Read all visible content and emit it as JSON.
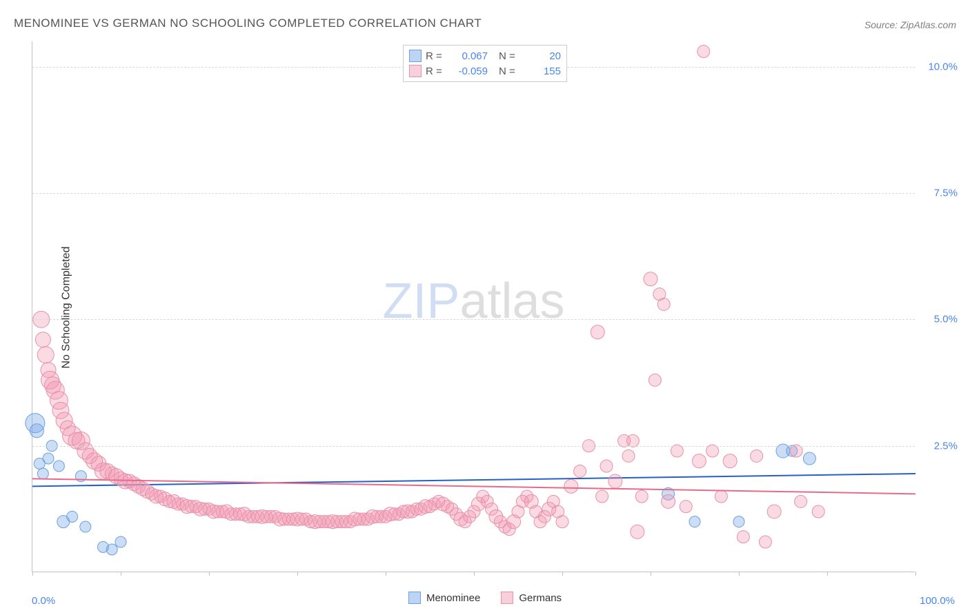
{
  "title": "MENOMINEE VS GERMAN NO SCHOOLING COMPLETED CORRELATION CHART",
  "source": "Source: ZipAtlas.com",
  "y_axis_label": "No Schooling Completed",
  "watermark": {
    "part1": "ZIP",
    "part2": "atlas"
  },
  "chart": {
    "type": "scatter",
    "xlim": [
      0,
      100
    ],
    "ylim": [
      0,
      10.5
    ],
    "x_tick_positions_pct": [
      0,
      10,
      20,
      30,
      40,
      50,
      60,
      70,
      80,
      90,
      100
    ],
    "y_gridlines": [
      2.5,
      5.0,
      7.5,
      10.0
    ],
    "y_tick_labels": [
      "2.5%",
      "5.0%",
      "7.5%",
      "10.0%"
    ],
    "x_tick_left": "0.0%",
    "x_tick_right": "100.0%",
    "background_color": "#ffffff",
    "grid_color": "#d8d8d8",
    "axis_color": "#c0c0c0",
    "series": [
      {
        "name": "Menominee",
        "fill": "rgba(110,160,230,0.35)",
        "stroke": "#6aa0e0",
        "marker_radius": 9,
        "trend": {
          "color": "#2560c4",
          "width": 2,
          "y_at_x0": 1.7,
          "y_at_x100": 1.95
        },
        "stats": {
          "R": "0.067",
          "N": "20"
        },
        "points": [
          {
            "x": 0.3,
            "y": 2.95,
            "r": 14
          },
          {
            "x": 0.5,
            "y": 2.8,
            "r": 10
          },
          {
            "x": 0.8,
            "y": 2.15,
            "r": 8
          },
          {
            "x": 1.2,
            "y": 1.95,
            "r": 8
          },
          {
            "x": 1.8,
            "y": 2.25,
            "r": 8
          },
          {
            "x": 3.0,
            "y": 2.1,
            "r": 8
          },
          {
            "x": 4.5,
            "y": 1.1,
            "r": 8
          },
          {
            "x": 6.0,
            "y": 0.9,
            "r": 8
          },
          {
            "x": 3.5,
            "y": 1.0,
            "r": 9
          },
          {
            "x": 8.0,
            "y": 0.5,
            "r": 8
          },
          {
            "x": 9.0,
            "y": 0.45,
            "r": 8
          },
          {
            "x": 10.0,
            "y": 0.6,
            "r": 8
          },
          {
            "x": 5.5,
            "y": 1.9,
            "r": 8
          },
          {
            "x": 72.0,
            "y": 1.55,
            "r": 9
          },
          {
            "x": 75.0,
            "y": 1.0,
            "r": 8
          },
          {
            "x": 80.0,
            "y": 1.0,
            "r": 8
          },
          {
            "x": 85.0,
            "y": 2.4,
            "r": 10
          },
          {
            "x": 88.0,
            "y": 2.25,
            "r": 9
          },
          {
            "x": 86.0,
            "y": 2.4,
            "r": 8
          },
          {
            "x": 2.2,
            "y": 2.5,
            "r": 8
          }
        ]
      },
      {
        "name": "Germans",
        "fill": "rgba(240,150,175,0.35)",
        "stroke": "#e890aa",
        "marker_radius": 9,
        "trend": {
          "color": "#e86a8a",
          "width": 2,
          "y_at_x0": 1.85,
          "y_at_x100": 1.55
        },
        "stats": {
          "R": "-0.059",
          "N": "155"
        },
        "points": [
          {
            "x": 1.0,
            "y": 5.0,
            "r": 12
          },
          {
            "x": 1.2,
            "y": 4.6,
            "r": 11
          },
          {
            "x": 1.5,
            "y": 4.3,
            "r": 12
          },
          {
            "x": 1.8,
            "y": 4.0,
            "r": 11
          },
          {
            "x": 2.0,
            "y": 3.8,
            "r": 13
          },
          {
            "x": 2.3,
            "y": 3.7,
            "r": 12
          },
          {
            "x": 2.6,
            "y": 3.6,
            "r": 13
          },
          {
            "x": 3.0,
            "y": 3.4,
            "r": 13
          },
          {
            "x": 3.2,
            "y": 3.2,
            "r": 12
          },
          {
            "x": 3.6,
            "y": 3.0,
            "r": 12
          },
          {
            "x": 4.0,
            "y": 2.85,
            "r": 11
          },
          {
            "x": 4.5,
            "y": 2.7,
            "r": 14
          },
          {
            "x": 5.0,
            "y": 2.6,
            "r": 12
          },
          {
            "x": 5.5,
            "y": 2.6,
            "r": 13
          },
          {
            "x": 6.0,
            "y": 2.4,
            "r": 12
          },
          {
            "x": 6.5,
            "y": 2.3,
            "r": 11
          },
          {
            "x": 7.0,
            "y": 2.2,
            "r": 12
          },
          {
            "x": 7.5,
            "y": 2.15,
            "r": 11
          },
          {
            "x": 8.0,
            "y": 2.0,
            "r": 12
          },
          {
            "x": 8.5,
            "y": 2.0,
            "r": 11
          },
          {
            "x": 9.0,
            "y": 1.95,
            "r": 10
          },
          {
            "x": 9.5,
            "y": 1.9,
            "r": 11
          },
          {
            "x": 10.0,
            "y": 1.85,
            "r": 10
          },
          {
            "x": 10.5,
            "y": 1.8,
            "r": 11
          },
          {
            "x": 11.0,
            "y": 1.8,
            "r": 10
          },
          {
            "x": 11.5,
            "y": 1.75,
            "r": 10
          },
          {
            "x": 12.0,
            "y": 1.7,
            "r": 10
          },
          {
            "x": 12.5,
            "y": 1.65,
            "r": 10
          },
          {
            "x": 13.0,
            "y": 1.6,
            "r": 10
          },
          {
            "x": 13.5,
            "y": 1.55,
            "r": 9
          },
          {
            "x": 14.0,
            "y": 1.5,
            "r": 10
          },
          {
            "x": 14.5,
            "y": 1.5,
            "r": 9
          },
          {
            "x": 15.0,
            "y": 1.45,
            "r": 10
          },
          {
            "x": 15.5,
            "y": 1.4,
            "r": 9
          },
          {
            "x": 16.0,
            "y": 1.4,
            "r": 10
          },
          {
            "x": 16.5,
            "y": 1.35,
            "r": 9
          },
          {
            "x": 17.0,
            "y": 1.35,
            "r": 9
          },
          {
            "x": 17.5,
            "y": 1.3,
            "r": 10
          },
          {
            "x": 18.0,
            "y": 1.3,
            "r": 9
          },
          {
            "x": 18.5,
            "y": 1.3,
            "r": 9
          },
          {
            "x": 19.0,
            "y": 1.25,
            "r": 10
          },
          {
            "x": 19.5,
            "y": 1.25,
            "r": 9
          },
          {
            "x": 20.0,
            "y": 1.25,
            "r": 9
          },
          {
            "x": 20.5,
            "y": 1.2,
            "r": 10
          },
          {
            "x": 21.0,
            "y": 1.2,
            "r": 9
          },
          {
            "x": 21.5,
            "y": 1.2,
            "r": 9
          },
          {
            "x": 22.0,
            "y": 1.2,
            "r": 10
          },
          {
            "x": 22.5,
            "y": 1.15,
            "r": 9
          },
          {
            "x": 23.0,
            "y": 1.15,
            "r": 9
          },
          {
            "x": 23.5,
            "y": 1.15,
            "r": 9
          },
          {
            "x": 24.0,
            "y": 1.15,
            "r": 10
          },
          {
            "x": 24.5,
            "y": 1.1,
            "r": 9
          },
          {
            "x": 25.0,
            "y": 1.1,
            "r": 9
          },
          {
            "x": 25.5,
            "y": 1.1,
            "r": 9
          },
          {
            "x": 26.0,
            "y": 1.1,
            "r": 10
          },
          {
            "x": 26.5,
            "y": 1.1,
            "r": 9
          },
          {
            "x": 27.0,
            "y": 1.1,
            "r": 9
          },
          {
            "x": 27.5,
            "y": 1.1,
            "r": 9
          },
          {
            "x": 28.0,
            "y": 1.05,
            "r": 10
          },
          {
            "x": 28.5,
            "y": 1.05,
            "r": 9
          },
          {
            "x": 29.0,
            "y": 1.05,
            "r": 9
          },
          {
            "x": 29.5,
            "y": 1.05,
            "r": 9
          },
          {
            "x": 30.0,
            "y": 1.05,
            "r": 10
          },
          {
            "x": 30.5,
            "y": 1.05,
            "r": 9
          },
          {
            "x": 31.0,
            "y": 1.05,
            "r": 9
          },
          {
            "x": 31.5,
            "y": 1.0,
            "r": 9
          },
          {
            "x": 32.0,
            "y": 1.0,
            "r": 10
          },
          {
            "x": 32.5,
            "y": 1.0,
            "r": 9
          },
          {
            "x": 33.0,
            "y": 1.0,
            "r": 9
          },
          {
            "x": 33.5,
            "y": 1.0,
            "r": 9
          },
          {
            "x": 34.0,
            "y": 1.0,
            "r": 10
          },
          {
            "x": 34.5,
            "y": 1.0,
            "r": 9
          },
          {
            "x": 35.0,
            "y": 1.0,
            "r": 9
          },
          {
            "x": 35.5,
            "y": 1.0,
            "r": 9
          },
          {
            "x": 36.0,
            "y": 1.0,
            "r": 9
          },
          {
            "x": 36.5,
            "y": 1.05,
            "r": 10
          },
          {
            "x": 37.0,
            "y": 1.05,
            "r": 9
          },
          {
            "x": 37.5,
            "y": 1.05,
            "r": 9
          },
          {
            "x": 38.0,
            "y": 1.05,
            "r": 9
          },
          {
            "x": 38.5,
            "y": 1.1,
            "r": 10
          },
          {
            "x": 39.0,
            "y": 1.1,
            "r": 9
          },
          {
            "x": 39.5,
            "y": 1.1,
            "r": 9
          },
          {
            "x": 40.0,
            "y": 1.1,
            "r": 9
          },
          {
            "x": 40.5,
            "y": 1.15,
            "r": 10
          },
          {
            "x": 41.0,
            "y": 1.15,
            "r": 9
          },
          {
            "x": 41.5,
            "y": 1.15,
            "r": 9
          },
          {
            "x": 42.0,
            "y": 1.2,
            "r": 9
          },
          {
            "x": 42.5,
            "y": 1.2,
            "r": 10
          },
          {
            "x": 43.0,
            "y": 1.2,
            "r": 9
          },
          {
            "x": 43.5,
            "y": 1.25,
            "r": 9
          },
          {
            "x": 44.0,
            "y": 1.25,
            "r": 9
          },
          {
            "x": 44.5,
            "y": 1.3,
            "r": 10
          },
          {
            "x": 45.0,
            "y": 1.3,
            "r": 9
          },
          {
            "x": 45.5,
            "y": 1.35,
            "r": 9
          },
          {
            "x": 46.0,
            "y": 1.4,
            "r": 9
          },
          {
            "x": 46.5,
            "y": 1.35,
            "r": 10
          },
          {
            "x": 47.0,
            "y": 1.3,
            "r": 9
          },
          {
            "x": 47.5,
            "y": 1.25,
            "r": 9
          },
          {
            "x": 48.0,
            "y": 1.15,
            "r": 9
          },
          {
            "x": 48.5,
            "y": 1.05,
            "r": 10
          },
          {
            "x": 49.0,
            "y": 1.0,
            "r": 9
          },
          {
            "x": 49.5,
            "y": 1.1,
            "r": 9
          },
          {
            "x": 50.0,
            "y": 1.2,
            "r": 9
          },
          {
            "x": 50.5,
            "y": 1.35,
            "r": 10
          },
          {
            "x": 51.0,
            "y": 1.5,
            "r": 9
          },
          {
            "x": 51.5,
            "y": 1.4,
            "r": 9
          },
          {
            "x": 52.0,
            "y": 1.25,
            "r": 9
          },
          {
            "x": 52.5,
            "y": 1.1,
            "r": 10
          },
          {
            "x": 53.0,
            "y": 1.0,
            "r": 9
          },
          {
            "x": 53.5,
            "y": 0.9,
            "r": 9
          },
          {
            "x": 54.0,
            "y": 0.85,
            "r": 9
          },
          {
            "x": 54.5,
            "y": 1.0,
            "r": 10
          },
          {
            "x": 55.0,
            "y": 1.2,
            "r": 9
          },
          {
            "x": 55.5,
            "y": 1.4,
            "r": 9
          },
          {
            "x": 56.0,
            "y": 1.5,
            "r": 9
          },
          {
            "x": 56.5,
            "y": 1.4,
            "r": 10
          },
          {
            "x": 57.0,
            "y": 1.2,
            "r": 9
          },
          {
            "x": 57.5,
            "y": 1.0,
            "r": 9
          },
          {
            "x": 58.0,
            "y": 1.1,
            "r": 9
          },
          {
            "x": 58.5,
            "y": 1.25,
            "r": 10
          },
          {
            "x": 59.0,
            "y": 1.4,
            "r": 9
          },
          {
            "x": 59.5,
            "y": 1.2,
            "r": 9
          },
          {
            "x": 60.0,
            "y": 1.0,
            "r": 9
          },
          {
            "x": 61.0,
            "y": 1.7,
            "r": 10
          },
          {
            "x": 62.0,
            "y": 2.0,
            "r": 9
          },
          {
            "x": 63.0,
            "y": 2.5,
            "r": 9
          },
          {
            "x": 64.0,
            "y": 4.75,
            "r": 10
          },
          {
            "x": 64.5,
            "y": 1.5,
            "r": 9
          },
          {
            "x": 65.0,
            "y": 2.1,
            "r": 9
          },
          {
            "x": 66.0,
            "y": 1.8,
            "r": 10
          },
          {
            "x": 67.0,
            "y": 2.6,
            "r": 9
          },
          {
            "x": 67.5,
            "y": 2.3,
            "r": 9
          },
          {
            "x": 68.0,
            "y": 2.6,
            "r": 9
          },
          {
            "x": 68.5,
            "y": 0.8,
            "r": 10
          },
          {
            "x": 69.0,
            "y": 1.5,
            "r": 9
          },
          {
            "x": 70.0,
            "y": 5.8,
            "r": 10
          },
          {
            "x": 70.5,
            "y": 3.8,
            "r": 9
          },
          {
            "x": 71.0,
            "y": 5.5,
            "r": 9
          },
          {
            "x": 71.5,
            "y": 5.3,
            "r": 9
          },
          {
            "x": 72.0,
            "y": 1.4,
            "r": 10
          },
          {
            "x": 73.0,
            "y": 2.4,
            "r": 9
          },
          {
            "x": 74.0,
            "y": 1.3,
            "r": 9
          },
          {
            "x": 75.5,
            "y": 2.2,
            "r": 10
          },
          {
            "x": 76.0,
            "y": 10.3,
            "r": 9
          },
          {
            "x": 77.0,
            "y": 2.4,
            "r": 9
          },
          {
            "x": 78.0,
            "y": 1.5,
            "r": 9
          },
          {
            "x": 79.0,
            "y": 2.2,
            "r": 10
          },
          {
            "x": 80.5,
            "y": 0.7,
            "r": 9
          },
          {
            "x": 82.0,
            "y": 2.3,
            "r": 9
          },
          {
            "x": 83.0,
            "y": 0.6,
            "r": 9
          },
          {
            "x": 84.0,
            "y": 1.2,
            "r": 10
          },
          {
            "x": 86.5,
            "y": 2.4,
            "r": 9
          },
          {
            "x": 87.0,
            "y": 1.4,
            "r": 9
          },
          {
            "x": 89.0,
            "y": 1.2,
            "r": 9
          }
        ]
      }
    ]
  },
  "legend_items": [
    "Menominee",
    "Germans"
  ],
  "legend_swatch_colors": [
    {
      "fill": "rgba(110,160,230,0.45)",
      "stroke": "#6aa0e0"
    },
    {
      "fill": "rgba(240,150,175,0.45)",
      "stroke": "#e890aa"
    }
  ]
}
